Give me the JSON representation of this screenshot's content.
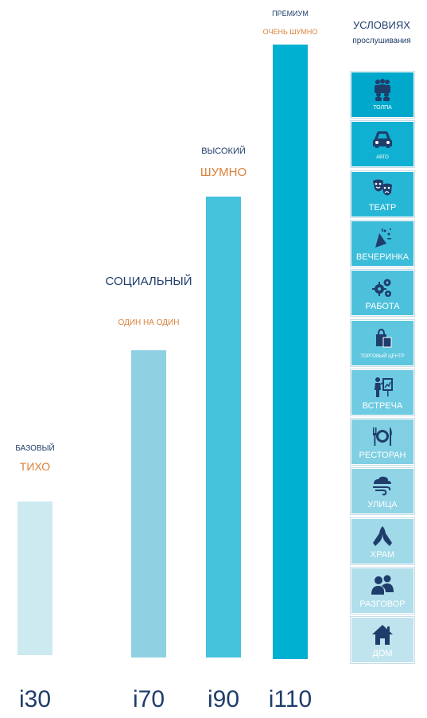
{
  "chart_data": {
    "type": "bar",
    "categories": [
      "i30",
      "i70",
      "i90",
      "i110"
    ],
    "values": [
      1,
      2,
      3,
      4
    ],
    "tiers": [
      "БАЗОВЫЙ",
      "СОЦИАЛЬНЫЙ",
      "ВЫСОКИЙ",
      "ПРЕМИУМ"
    ],
    "levels": [
      "ТИХО",
      "ОДИН НА ОДИН",
      "ШУМНО",
      "ОЧЕНЬ ШУМНО"
    ],
    "colors": [
      "#cdeaf1",
      "#8fd1e2",
      "#45c2dc",
      "#00b0d0"
    ],
    "legend_title": [
      "УСЛОВИЯХ",
      "прослушивания"
    ],
    "conditions": [
      {
        "label": "ТОЛПА",
        "icon": "crowd-icon",
        "color": "#00a8cc",
        "size": "small"
      },
      {
        "label": "АВТО",
        "icon": "car-icon",
        "color": "#0fb0d2",
        "size": "tiny"
      },
      {
        "label": "ТЕАТР",
        "icon": "theater-masks-icon",
        "color": "#27b7d6",
        "size": "normal"
      },
      {
        "label": "ВЕЧЕРИНКА",
        "icon": "party-icon",
        "color": "#3bbcd9",
        "size": "normal"
      },
      {
        "label": "РАБОТА",
        "icon": "gears-icon",
        "color": "#4dc1dc",
        "size": "normal"
      },
      {
        "label": "ТОРГОВЫЙ ЦЕНТР",
        "icon": "shopping-icon",
        "color": "#5ec6df",
        "size": "tiny"
      },
      {
        "label": "ВСТРЕЧА",
        "icon": "presentation-icon",
        "color": "#6fcbe2",
        "size": "normal"
      },
      {
        "label": "РЕСТОРАН",
        "icon": "restaurant-icon",
        "color": "#80cfe3",
        "size": "normal"
      },
      {
        "label": "УЛИЦА",
        "icon": "wind-icon",
        "color": "#90d4e5",
        "size": "normal"
      },
      {
        "label": "ХРАМ",
        "icon": "praying-hands-icon",
        "color": "#a0d9e8",
        "size": "normal"
      },
      {
        "label": "РАЗГОВОР",
        "icon": "conversation-icon",
        "color": "#b0deeb",
        "size": "normal"
      },
      {
        "label": "ДОМ",
        "icon": "home-icon",
        "color": "#c0e4ee",
        "size": "normal"
      }
    ]
  }
}
